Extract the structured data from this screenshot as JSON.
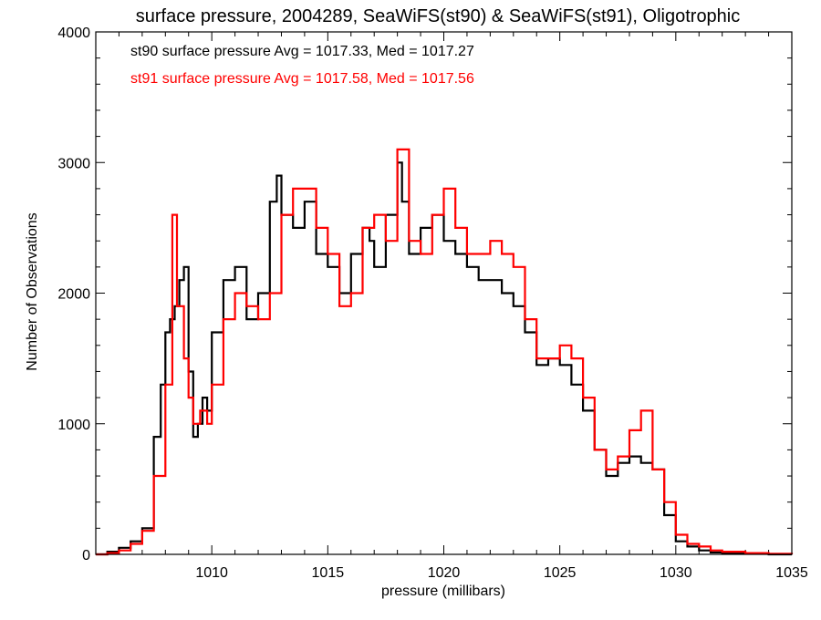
{
  "chart_data": {
    "type": "line",
    "step": true,
    "title": "surface pressure, 2004289, SeaWiFS(st90) & SeaWiFS(st91), Oligotrophic",
    "xlabel": "pressure (millibars)",
    "ylabel": "Number of Observations",
    "xlim": [
      1005,
      1035
    ],
    "ylim": [
      0,
      4000
    ],
    "xticks": [
      1010,
      1015,
      1020,
      1025,
      1030,
      1035
    ],
    "yticks": [
      0,
      1000,
      2000,
      3000,
      4000
    ],
    "grid": false,
    "legend_position": "top-left",
    "colors": {
      "axes": "#000000",
      "st90": "#000000",
      "st91": "#ff0000"
    },
    "annotations": [
      {
        "text": "st90 surface pressure Avg = 1017.33, Med = 1017.27",
        "color": "#000000"
      },
      {
        "text": "st91 surface pressure Avg = 1017.58, Med = 1017.56",
        "color": "#ff0000"
      }
    ],
    "series": [
      {
        "id": "st90",
        "color": "#000000",
        "x": [
          1005.0,
          1005.5,
          1006.0,
          1006.5,
          1007.0,
          1007.5,
          1007.8,
          1008.0,
          1008.2,
          1008.4,
          1008.6,
          1008.8,
          1009.0,
          1009.2,
          1009.4,
          1009.6,
          1009.8,
          1010.0,
          1010.5,
          1011.0,
          1011.5,
          1012.0,
          1012.5,
          1012.8,
          1013.0,
          1013.5,
          1014.0,
          1014.5,
          1015.0,
          1015.5,
          1016.0,
          1016.5,
          1016.8,
          1017.0,
          1017.5,
          1018.0,
          1018.2,
          1018.5,
          1019.0,
          1019.5,
          1020.0,
          1020.5,
          1021.0,
          1021.5,
          1022.0,
          1022.5,
          1023.0,
          1023.5,
          1024.0,
          1024.5,
          1025.0,
          1025.5,
          1026.0,
          1026.5,
          1027.0,
          1027.5,
          1028.0,
          1028.5,
          1029.0,
          1029.5,
          1030.0,
          1030.5,
          1031.0,
          1031.5,
          1032.0,
          1033.0,
          1034.0,
          1035.0
        ],
        "y": [
          0,
          20,
          50,
          100,
          200,
          900,
          1300,
          1700,
          1800,
          1900,
          2100,
          2200,
          1400,
          900,
          1000,
          1200,
          1100,
          1700,
          2100,
          2200,
          1800,
          2000,
          2700,
          2900,
          2600,
          2500,
          2700,
          2300,
          2200,
          2000,
          2300,
          2500,
          2400,
          2200,
          2600,
          3000,
          2700,
          2300,
          2500,
          2600,
          2400,
          2300,
          2200,
          2100,
          2100,
          2000,
          1900,
          1700,
          1450,
          1500,
          1450,
          1300,
          1100,
          800,
          600,
          700,
          750,
          700,
          650,
          300,
          100,
          60,
          30,
          15,
          10,
          5,
          0,
          0
        ]
      },
      {
        "id": "st91",
        "color": "#ff0000",
        "x": [
          1005.0,
          1005.5,
          1006.0,
          1006.5,
          1007.0,
          1007.5,
          1008.0,
          1008.3,
          1008.5,
          1008.8,
          1009.0,
          1009.2,
          1009.5,
          1009.8,
          1010.0,
          1010.5,
          1011.0,
          1011.5,
          1012.0,
          1012.5,
          1013.0,
          1013.5,
          1014.0,
          1014.5,
          1015.0,
          1015.5,
          1016.0,
          1016.5,
          1017.0,
          1017.5,
          1018.0,
          1018.5,
          1019.0,
          1019.5,
          1020.0,
          1020.5,
          1021.0,
          1021.5,
          1022.0,
          1022.5,
          1023.0,
          1023.5,
          1024.0,
          1024.5,
          1025.0,
          1025.5,
          1026.0,
          1026.5,
          1027.0,
          1027.5,
          1028.0,
          1028.5,
          1029.0,
          1029.5,
          1030.0,
          1030.5,
          1031.0,
          1031.5,
          1032.0,
          1033.0,
          1034.0,
          1035.0
        ],
        "y": [
          0,
          10,
          30,
          80,
          180,
          600,
          1300,
          2600,
          1900,
          1500,
          1200,
          1000,
          1100,
          1000,
          1300,
          1800,
          2000,
          1900,
          1800,
          2000,
          2600,
          2800,
          2800,
          2500,
          2300,
          1900,
          2000,
          2500,
          2600,
          2400,
          3100,
          2400,
          2300,
          2600,
          2800,
          2500,
          2300,
          2300,
          2400,
          2300,
          2200,
          1800,
          1500,
          1500,
          1600,
          1500,
          1200,
          800,
          650,
          750,
          950,
          1100,
          650,
          400,
          150,
          80,
          60,
          30,
          20,
          10,
          5,
          0
        ]
      }
    ]
  }
}
